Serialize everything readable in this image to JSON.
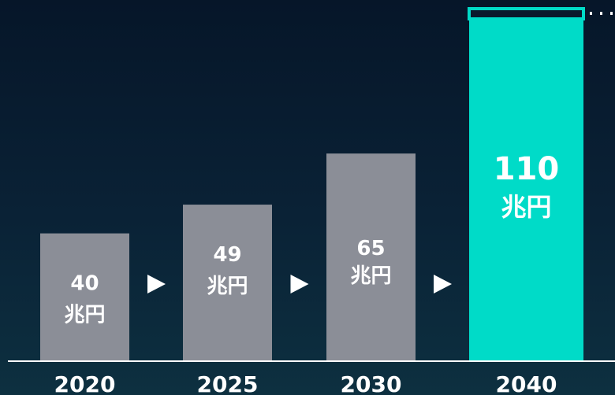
{
  "chart_data": {
    "type": "bar",
    "categories": [
      "2020",
      "2025",
      "2030",
      "2040"
    ],
    "values": [
      40,
      49,
      65,
      110
    ],
    "unit": "兆円",
    "highlight_index": 3,
    "colors": {
      "bar": "#8b8e97",
      "highlight": "#00dbc8",
      "text": "#ffffff",
      "axis": "#ffffff"
    }
  }
}
